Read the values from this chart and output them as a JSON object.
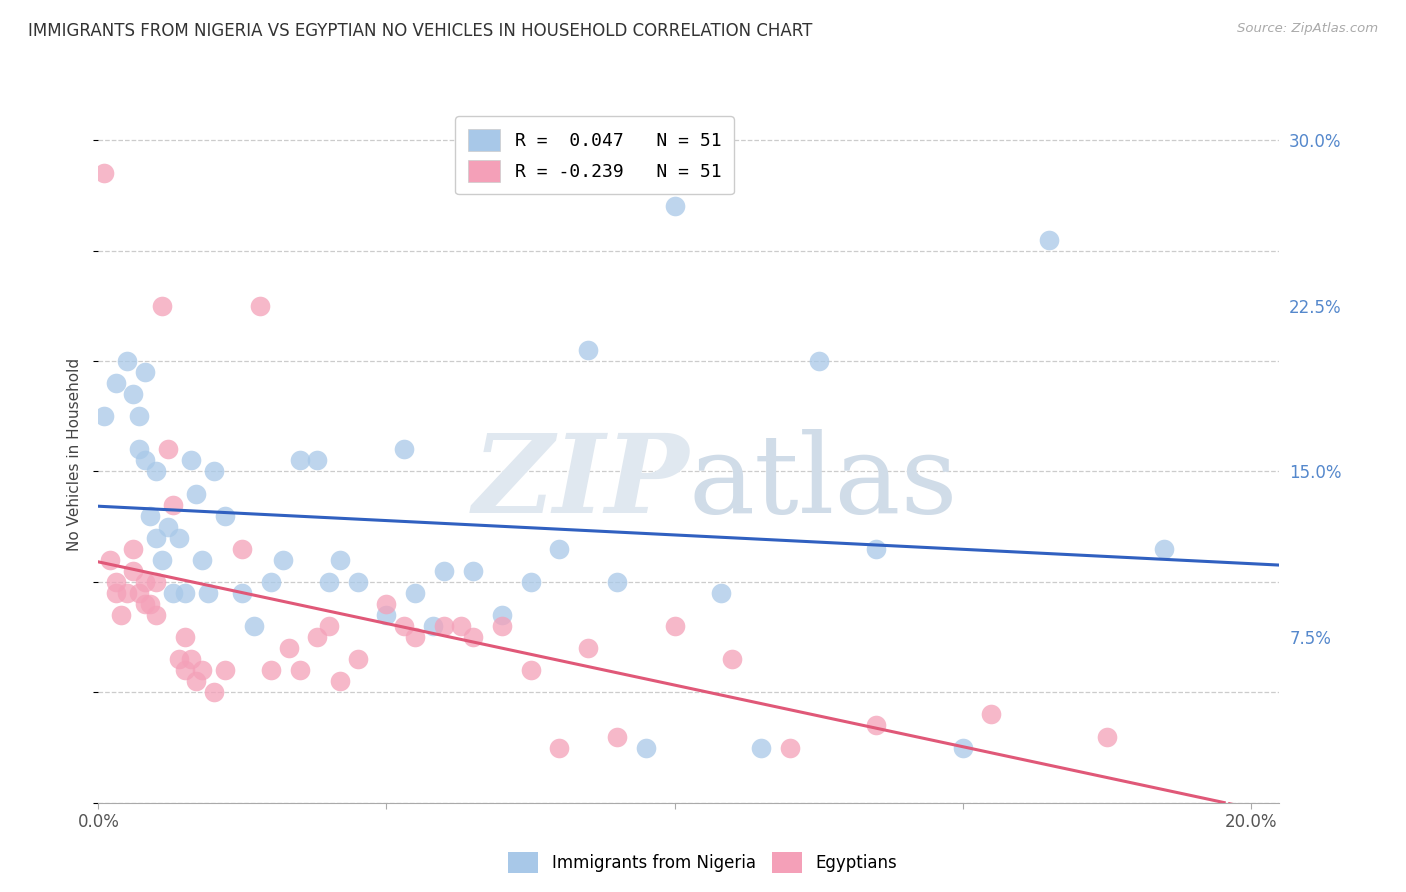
{
  "title": "IMMIGRANTS FROM NIGERIA VS EGYPTIAN NO VEHICLES IN HOUSEHOLD CORRELATION CHART",
  "source": "Source: ZipAtlas.com",
  "ylabel": "No Vehicles in Household",
  "xlim": [
    0.0,
    0.205
  ],
  "ylim": [
    0.0,
    0.315
  ],
  "xticks": [
    0.0,
    0.05,
    0.1,
    0.15,
    0.2
  ],
  "yticks_right": [
    0.075,
    0.15,
    0.225,
    0.3
  ],
  "ytick_labels_right": [
    "7.5%",
    "15.0%",
    "22.5%",
    "30.0%"
  ],
  "xtick_labels": [
    "0.0%",
    "",
    "",
    "",
    "20.0%"
  ],
  "legend_entries": [
    {
      "label": "R =  0.047   N = 51",
      "color": "#a8c8e8"
    },
    {
      "label": "R = -0.239   N = 51",
      "color": "#f4a0b8"
    }
  ],
  "legend_labels_bottom": [
    "Immigrants from Nigeria",
    "Egyptians"
  ],
  "nigeria_color": "#a8c8e8",
  "egypt_color": "#f4a0b8",
  "nigeria_line_color": "#3060c0",
  "egypt_line_color": "#e05878",
  "background_color": "#ffffff",
  "grid_color": "#cccccc",
  "nigeria_R": 0.047,
  "egypt_R": -0.239,
  "nigeria_x": [
    0.001,
    0.003,
    0.005,
    0.006,
    0.007,
    0.007,
    0.008,
    0.008,
    0.009,
    0.01,
    0.01,
    0.011,
    0.012,
    0.013,
    0.014,
    0.015,
    0.016,
    0.017,
    0.018,
    0.019,
    0.02,
    0.022,
    0.025,
    0.027,
    0.03,
    0.032,
    0.035,
    0.038,
    0.04,
    0.042,
    0.045,
    0.05,
    0.053,
    0.055,
    0.058,
    0.06,
    0.065,
    0.07,
    0.075,
    0.08,
    0.085,
    0.09,
    0.095,
    0.1,
    0.108,
    0.115,
    0.125,
    0.135,
    0.15,
    0.165,
    0.185
  ],
  "nigeria_y": [
    0.175,
    0.19,
    0.2,
    0.185,
    0.175,
    0.16,
    0.195,
    0.155,
    0.13,
    0.12,
    0.15,
    0.11,
    0.125,
    0.095,
    0.12,
    0.095,
    0.155,
    0.14,
    0.11,
    0.095,
    0.15,
    0.13,
    0.095,
    0.08,
    0.1,
    0.11,
    0.155,
    0.155,
    0.1,
    0.11,
    0.1,
    0.085,
    0.16,
    0.095,
    0.08,
    0.105,
    0.105,
    0.085,
    0.1,
    0.115,
    0.205,
    0.1,
    0.025,
    0.27,
    0.095,
    0.025,
    0.2,
    0.115,
    0.025,
    0.255,
    0.115
  ],
  "egypt_x": [
    0.001,
    0.002,
    0.003,
    0.003,
    0.004,
    0.005,
    0.006,
    0.006,
    0.007,
    0.008,
    0.008,
    0.009,
    0.01,
    0.01,
    0.011,
    0.012,
    0.013,
    0.014,
    0.015,
    0.015,
    0.016,
    0.017,
    0.018,
    0.02,
    0.022,
    0.025,
    0.028,
    0.03,
    0.033,
    0.035,
    0.038,
    0.04,
    0.042,
    0.045,
    0.05,
    0.053,
    0.055,
    0.06,
    0.063,
    0.065,
    0.07,
    0.075,
    0.08,
    0.085,
    0.09,
    0.1,
    0.11,
    0.12,
    0.135,
    0.155,
    0.175
  ],
  "egypt_y": [
    0.285,
    0.11,
    0.095,
    0.1,
    0.085,
    0.095,
    0.115,
    0.105,
    0.095,
    0.09,
    0.1,
    0.09,
    0.085,
    0.1,
    0.225,
    0.16,
    0.135,
    0.065,
    0.075,
    0.06,
    0.065,
    0.055,
    0.06,
    0.05,
    0.06,
    0.115,
    0.225,
    0.06,
    0.07,
    0.06,
    0.075,
    0.08,
    0.055,
    0.065,
    0.09,
    0.08,
    0.075,
    0.08,
    0.08,
    0.075,
    0.08,
    0.06,
    0.025,
    0.07,
    0.03,
    0.08,
    0.065,
    0.025,
    0.035,
    0.04,
    0.03
  ]
}
